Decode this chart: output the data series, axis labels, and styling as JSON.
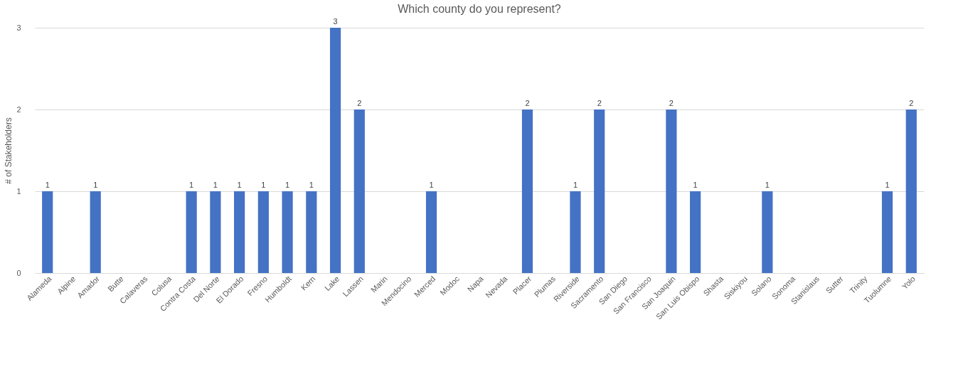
{
  "chart_data": {
    "type": "bar",
    "title": "Which county do you represent?",
    "ylabel": "# of Stakeholders",
    "categories": [
      "Alameda",
      "Alpine",
      "Amador",
      "Butte",
      "Calaveras",
      "Colusa",
      "Contra Costa",
      "Del Norte",
      "El Dorado",
      "Fresno",
      "Humboldt",
      "Kern",
      "Lake",
      "Lassen",
      "Marin",
      "Mendocino",
      "Merced",
      "Modoc",
      "Napa",
      "Nevada",
      "Placer",
      "Plumas",
      "Riverside",
      "Sacramento",
      "San Diego",
      "San Francisco",
      "San Joaquin",
      "San Luis Obispo",
      "Shasta",
      "Siskiyou",
      "Solano",
      "Sonoma",
      "Stanislaus",
      "Sutter",
      "Trinity",
      "Tuolumne",
      "Yolo"
    ],
    "values": [
      1,
      0,
      1,
      0,
      0,
      0,
      1,
      1,
      1,
      1,
      1,
      1,
      3,
      2,
      0,
      0,
      1,
      0,
      0,
      0,
      2,
      0,
      1,
      2,
      0,
      0,
      2,
      1,
      0,
      0,
      1,
      0,
      0,
      0,
      0,
      1,
      2
    ],
    "value_labels": [
      "1",
      null,
      "1",
      null,
      null,
      null,
      "1",
      "1",
      "1",
      "1",
      "1",
      "1",
      "3",
      "2",
      null,
      null,
      "1",
      null,
      null,
      null,
      "2",
      null,
      "1",
      "2",
      null,
      null,
      "2",
      "1",
      null,
      null,
      "1",
      null,
      null,
      null,
      null,
      "1",
      "2"
    ],
    "color": "#4472c4",
    "ylim": [
      0,
      3
    ],
    "yticks": [
      0,
      1,
      2,
      3
    ],
    "grid": "y"
  }
}
